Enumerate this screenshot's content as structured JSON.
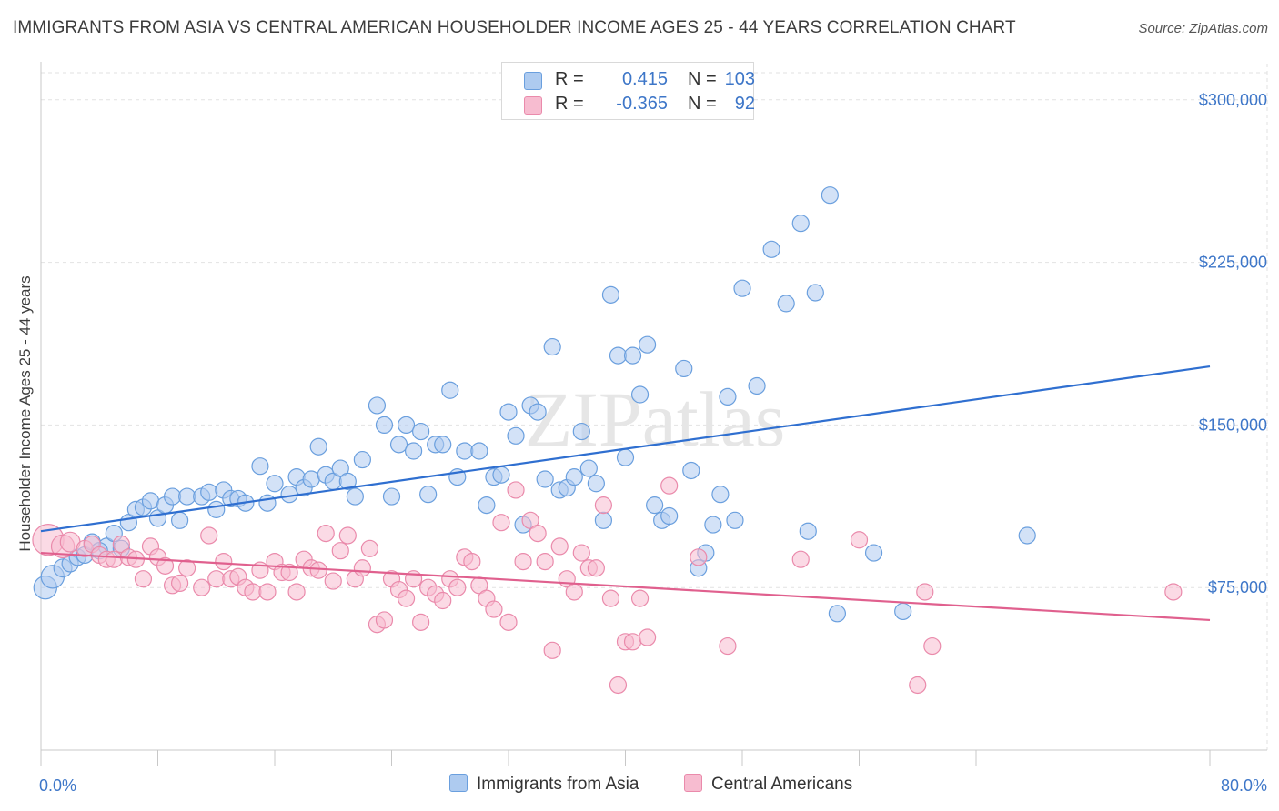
{
  "title": "IMMIGRANTS FROM ASIA VS CENTRAL AMERICAN HOUSEHOLDER INCOME AGES 25 - 44 YEARS CORRELATION CHART",
  "source": "Source: ZipAtlas.com",
  "watermark": "ZIPatlas",
  "legend": {
    "r_label": "R =",
    "n_label": "N =",
    "series": [
      {
        "name": "Immigrants from Asia",
        "r": "0.415",
        "n": "103",
        "fill": "#aecbf0",
        "stroke": "#6a9fde"
      },
      {
        "name": "Central Americans",
        "r": "-0.365",
        "n": "92",
        "fill": "#f7bcd0",
        "stroke": "#ea8aab"
      }
    ]
  },
  "chart_data": {
    "type": "scatter",
    "title": "IMMIGRANTS FROM ASIA VS CENTRAL AMERICAN HOUSEHOLDER INCOME AGES 25 - 44 YEARS CORRELATION CHART",
    "xlabel": "",
    "ylabel": "Householder Income Ages 25 - 44 years",
    "xlim": [
      0,
      80
    ],
    "ylim": [
      0,
      312500
    ],
    "x_tick_labels": [
      "0.0%",
      "80.0%"
    ],
    "y_ticks": [
      75000,
      150000,
      225000,
      300000
    ],
    "y_tick_labels": [
      "$75,000",
      "$150,000",
      "$225,000",
      "$300,000"
    ],
    "colors": {
      "asia_line": "#2f6fd0",
      "central_line": "#e0608e",
      "tick_text": "#3d76c8",
      "grid": "#e2e2e2"
    },
    "series": [
      {
        "name": "Immigrants from Asia",
        "trend": {
          "x0": 0,
          "y0": 101000,
          "x1": 80,
          "y1": 177000
        },
        "points": [
          [
            0.3,
            75000,
            1.4
          ],
          [
            0.8,
            80000,
            1.4
          ],
          [
            1.5,
            84000,
            1.1
          ],
          [
            2,
            86000,
            1
          ],
          [
            2.5,
            89000,
            1
          ],
          [
            3,
            90000,
            1
          ],
          [
            3.5,
            96000,
            1
          ],
          [
            4.5,
            94000,
            1
          ],
          [
            4,
            92000,
            1
          ],
          [
            5.5,
            93000,
            1
          ],
          [
            5,
            100000,
            1
          ],
          [
            6,
            105000,
            1
          ],
          [
            6.5,
            111000,
            1
          ],
          [
            7,
            112000,
            1
          ],
          [
            7.5,
            115000,
            1
          ],
          [
            8,
            107000,
            1
          ],
          [
            8.5,
            113000,
            1
          ],
          [
            9,
            117000,
            1
          ],
          [
            9.5,
            106000,
            1
          ],
          [
            10,
            117000,
            1
          ],
          [
            11,
            117000,
            1
          ],
          [
            11.5,
            119000,
            1
          ],
          [
            12,
            111000,
            1
          ],
          [
            12.5,
            120000,
            1
          ],
          [
            13,
            116000,
            1
          ],
          [
            13.5,
            116000,
            1
          ],
          [
            14,
            114000,
            1
          ],
          [
            15,
            131000,
            1
          ],
          [
            15.5,
            114000,
            1
          ],
          [
            16,
            123000,
            1
          ],
          [
            17,
            118000,
            1
          ],
          [
            17.5,
            126000,
            1
          ],
          [
            18,
            121000,
            1
          ],
          [
            18.5,
            125000,
            1
          ],
          [
            19,
            140000,
            1
          ],
          [
            19.5,
            127000,
            1
          ],
          [
            20,
            124000,
            1
          ],
          [
            20.5,
            130000,
            1
          ],
          [
            21,
            124000,
            1
          ],
          [
            21.5,
            117000,
            1
          ],
          [
            22,
            134000,
            1
          ],
          [
            23,
            159000,
            1
          ],
          [
            23.5,
            150000,
            1
          ],
          [
            24,
            117000,
            1
          ],
          [
            24.5,
            141000,
            1
          ],
          [
            25,
            150000,
            1
          ],
          [
            25.5,
            138000,
            1
          ],
          [
            26,
            147000,
            1
          ],
          [
            26.5,
            118000,
            1
          ],
          [
            27,
            141000,
            1
          ],
          [
            27.5,
            141000,
            1
          ],
          [
            28,
            166000,
            1
          ],
          [
            28.5,
            126000,
            1
          ],
          [
            29,
            138000,
            1
          ],
          [
            30,
            138000,
            1
          ],
          [
            30.5,
            113000,
            1
          ],
          [
            31,
            126000,
            1
          ],
          [
            31.5,
            127000,
            1
          ],
          [
            32,
            156000,
            1
          ],
          [
            32.5,
            145000,
            1
          ],
          [
            33,
            104000,
            1
          ],
          [
            33.5,
            159000,
            1
          ],
          [
            34,
            156000,
            1
          ],
          [
            34.5,
            125000,
            1
          ],
          [
            35,
            186000,
            1
          ],
          [
            35.5,
            120000,
            1
          ],
          [
            36,
            121000,
            1
          ],
          [
            36.5,
            126000,
            1
          ],
          [
            37,
            147000,
            1
          ],
          [
            37.5,
            130000,
            1
          ],
          [
            38,
            123000,
            1
          ],
          [
            38.5,
            106000,
            1
          ],
          [
            39,
            210000,
            1
          ],
          [
            39.5,
            182000,
            1
          ],
          [
            40,
            135000,
            1
          ],
          [
            40.5,
            182000,
            1
          ],
          [
            41,
            164000,
            1
          ],
          [
            41.5,
            187000,
            1
          ],
          [
            42,
            113000,
            1
          ],
          [
            42.5,
            106000,
            1
          ],
          [
            43,
            108000,
            1
          ],
          [
            44,
            176000,
            1
          ],
          [
            44.5,
            129000,
            1
          ],
          [
            45,
            84000,
            1
          ],
          [
            45.5,
            91000,
            1
          ],
          [
            46,
            104000,
            1
          ],
          [
            46.5,
            118000,
            1
          ],
          [
            47,
            163000,
            1
          ],
          [
            47.5,
            106000,
            1
          ],
          [
            48,
            213000,
            1
          ],
          [
            49,
            168000,
            1
          ],
          [
            50,
            231000,
            1
          ],
          [
            51,
            206000,
            1
          ],
          [
            52,
            243000,
            1
          ],
          [
            52.5,
            101000,
            1
          ],
          [
            53,
            211000,
            1
          ],
          [
            54,
            256000,
            1
          ],
          [
            54.5,
            63000,
            1
          ],
          [
            57,
            91000,
            1
          ],
          [
            59,
            64000,
            1
          ],
          [
            67.5,
            99000,
            1
          ]
        ]
      },
      {
        "name": "Central Americans",
        "trend": {
          "x0": 0,
          "y0": 91000,
          "x1": 80,
          "y1": 60000
        },
        "points": [
          [
            0.5,
            97000,
            1.9
          ],
          [
            1.5,
            94000,
            1.4
          ],
          [
            2,
            96000,
            1.2
          ],
          [
            3,
            93000,
            1
          ],
          [
            3.5,
            95000,
            1
          ],
          [
            4,
            90000,
            1
          ],
          [
            4.5,
            88000,
            1
          ],
          [
            5,
            88000,
            1
          ],
          [
            5.5,
            95000,
            1
          ],
          [
            6,
            89000,
            1
          ],
          [
            6.5,
            88000,
            1
          ],
          [
            7,
            79000,
            1
          ],
          [
            7.5,
            94000,
            1
          ],
          [
            8,
            89000,
            1
          ],
          [
            8.5,
            85000,
            1
          ],
          [
            9,
            76000,
            1
          ],
          [
            9.5,
            77000,
            1
          ],
          [
            10,
            84000,
            1
          ],
          [
            11,
            75000,
            1
          ],
          [
            11.5,
            99000,
            1
          ],
          [
            12,
            79000,
            1
          ],
          [
            12.5,
            87000,
            1
          ],
          [
            13,
            79000,
            1
          ],
          [
            13.5,
            80000,
            1
          ],
          [
            14,
            75000,
            1
          ],
          [
            14.5,
            73000,
            1
          ],
          [
            15,
            83000,
            1
          ],
          [
            15.5,
            73000,
            1
          ],
          [
            16,
            87000,
            1
          ],
          [
            16.5,
            82000,
            1
          ],
          [
            17,
            82000,
            1
          ],
          [
            17.5,
            73000,
            1
          ],
          [
            18,
            88000,
            1
          ],
          [
            18.5,
            84000,
            1
          ],
          [
            19,
            83000,
            1
          ],
          [
            19.5,
            100000,
            1
          ],
          [
            20,
            78000,
            1
          ],
          [
            20.5,
            92000,
            1
          ],
          [
            21,
            99000,
            1
          ],
          [
            21.5,
            79000,
            1
          ],
          [
            22,
            84000,
            1
          ],
          [
            22.5,
            93000,
            1
          ],
          [
            23,
            58000,
            1
          ],
          [
            23.5,
            60000,
            1
          ],
          [
            24,
            79000,
            1
          ],
          [
            24.5,
            74000,
            1
          ],
          [
            25,
            70000,
            1
          ],
          [
            25.5,
            79000,
            1
          ],
          [
            26,
            59000,
            1
          ],
          [
            26.5,
            75000,
            1
          ],
          [
            27,
            72000,
            1
          ],
          [
            27.5,
            69000,
            1
          ],
          [
            28,
            79000,
            1
          ],
          [
            28.5,
            75000,
            1
          ],
          [
            29,
            89000,
            1
          ],
          [
            29.5,
            87000,
            1
          ],
          [
            30,
            76000,
            1
          ],
          [
            30.5,
            70000,
            1
          ],
          [
            31,
            65000,
            1
          ],
          [
            31.5,
            105000,
            1
          ],
          [
            32,
            59000,
            1
          ],
          [
            32.5,
            120000,
            1
          ],
          [
            33,
            87000,
            1
          ],
          [
            33.5,
            106000,
            1
          ],
          [
            34,
            100000,
            1
          ],
          [
            34.5,
            87000,
            1
          ],
          [
            35,
            46000,
            1
          ],
          [
            35.5,
            94000,
            1
          ],
          [
            36,
            79000,
            1
          ],
          [
            36.5,
            73000,
            1
          ],
          [
            37,
            91000,
            1
          ],
          [
            37.5,
            84000,
            1
          ],
          [
            38,
            84000,
            1
          ],
          [
            38.5,
            113000,
            1
          ],
          [
            39,
            70000,
            1
          ],
          [
            39.5,
            30000,
            1
          ],
          [
            40,
            50000,
            1
          ],
          [
            40.5,
            50000,
            1
          ],
          [
            41,
            70000,
            1
          ],
          [
            41.5,
            52000,
            1
          ],
          [
            43,
            122000,
            1
          ],
          [
            45,
            89000,
            1
          ],
          [
            47,
            48000,
            1
          ],
          [
            52,
            88000,
            1
          ],
          [
            56,
            97000,
            1
          ],
          [
            60,
            30000,
            1
          ],
          [
            60.5,
            73000,
            1
          ],
          [
            61,
            48000,
            1
          ],
          [
            77.5,
            73000,
            1
          ]
        ]
      }
    ]
  }
}
